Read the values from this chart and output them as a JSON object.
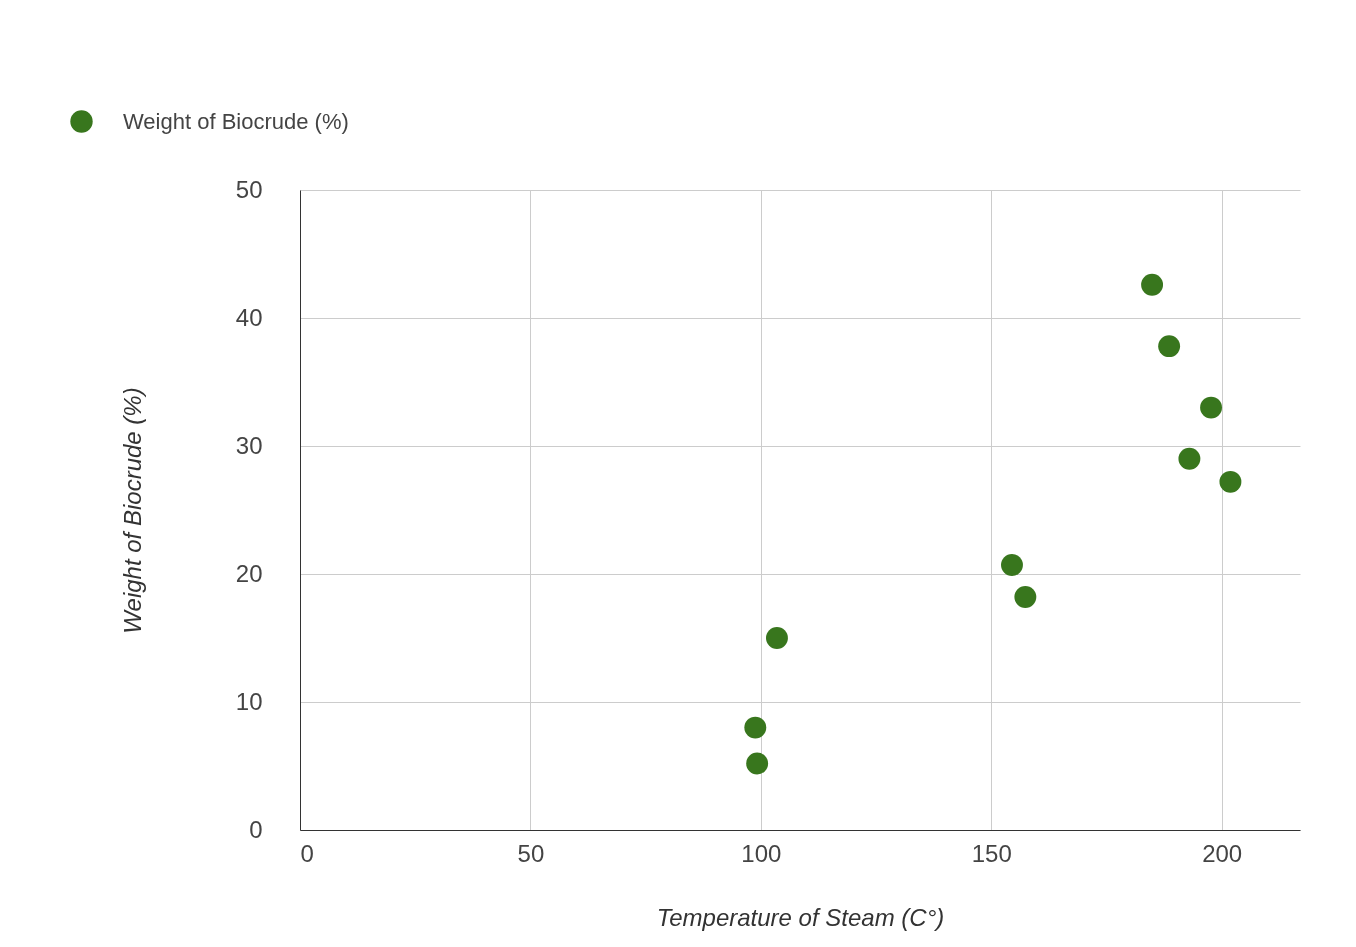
{
  "chart_data": {
    "type": "scatter",
    "xlabel": "Temperature of Steam (C°)",
    "ylabel": "Weight of Biocrude (%)",
    "x": [
      184.9,
      188.6,
      197.7,
      193.0,
      201.9,
      154.5,
      157.4,
      103.5,
      98.8,
      99.2
    ],
    "series": [
      {
        "name": "Weight of Biocrude (%)",
        "color": "#38761d",
        "values": [
          42.6,
          37.8,
          33.0,
          29.0,
          27.2,
          20.7,
          18.2,
          15.0,
          8.0,
          5.2
        ]
      }
    ],
    "xlim": [
      0,
      217
    ],
    "xticks": [
      0,
      50,
      100,
      150,
      200
    ],
    "ylim": [
      0,
      50
    ],
    "yticks": [
      0,
      10,
      20,
      30,
      40,
      50
    ],
    "grid": true,
    "legend": "top left",
    "marker": "circle"
  }
}
